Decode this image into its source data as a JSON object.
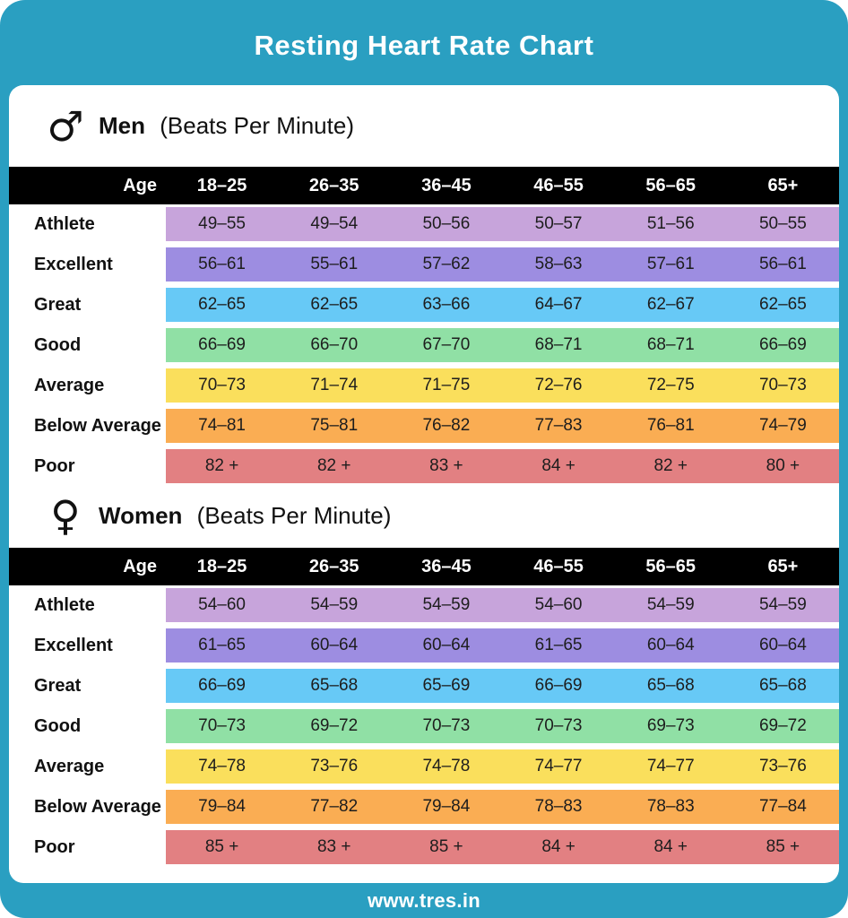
{
  "title": "Resting Heart Rate Chart",
  "footer": {
    "url": "www.tres.in"
  },
  "theme": {
    "teal": "#2A9FC1",
    "header_black": "#000000",
    "card_white": "#FFFFFF",
    "text_dark": "#111111"
  },
  "chart_data": [
    {
      "type": "table",
      "section": "Men",
      "subtitle": "(Beats Per Minute)",
      "icon": "male-icon",
      "icon_glyph": "♂",
      "columns": [
        "Age",
        "18–25",
        "26–35",
        "36–45",
        "46–55",
        "56–65",
        "65+"
      ],
      "rows": [
        {
          "label": "Athlete",
          "color": "#C7A4DB",
          "values": [
            "49–55",
            "49–54",
            "50–56",
            "50–57",
            "51–56",
            "50–55"
          ]
        },
        {
          "label": "Excellent",
          "color": "#9D8DE1",
          "values": [
            "56–61",
            "55–61",
            "57–62",
            "58–63",
            "57–61",
            "56–61"
          ]
        },
        {
          "label": "Great",
          "color": "#67C9F6",
          "values": [
            "62–65",
            "62–65",
            "63–66",
            "64–67",
            "62–67",
            "62–65"
          ]
        },
        {
          "label": "Good",
          "color": "#90E0A5",
          "values": [
            "66–69",
            "66–70",
            "67–70",
            "68–71",
            "68–71",
            "66–69"
          ]
        },
        {
          "label": "Average",
          "color": "#FADF5C",
          "values": [
            "70–73",
            "71–74",
            "71–75",
            "72–76",
            "72–75",
            "70–73"
          ]
        },
        {
          "label": "Below Average",
          "color": "#FAAD53",
          "values": [
            "74–81",
            "75–81",
            "76–82",
            "77–83",
            "76–81",
            "74–79"
          ]
        },
        {
          "label": "Poor",
          "color": "#E28082",
          "values": [
            "82 +",
            "82 +",
            "83 +",
            "84 +",
            "82 +",
            "80 +"
          ]
        }
      ]
    },
    {
      "type": "table",
      "section": "Women",
      "subtitle": "(Beats Per Minute)",
      "icon": "female-icon",
      "icon_glyph": "♀",
      "columns": [
        "Age",
        "18–25",
        "26–35",
        "36–45",
        "46–55",
        "56–65",
        "65+"
      ],
      "rows": [
        {
          "label": "Athlete",
          "color": "#C7A4DB",
          "values": [
            "54–60",
            "54–59",
            "54–59",
            "54–60",
            "54–59",
            "54–59"
          ]
        },
        {
          "label": "Excellent",
          "color": "#9D8DE1",
          "values": [
            "61–65",
            "60–64",
            "60–64",
            "61–65",
            "60–64",
            "60–64"
          ]
        },
        {
          "label": "Great",
          "color": "#67C9F6",
          "values": [
            "66–69",
            "65–68",
            "65–69",
            "66–69",
            "65–68",
            "65–68"
          ]
        },
        {
          "label": "Good",
          "color": "#90E0A5",
          "values": [
            "70–73",
            "69–72",
            "70–73",
            "70–73",
            "69–73",
            "69–72"
          ]
        },
        {
          "label": "Average",
          "color": "#FADF5C",
          "values": [
            "74–78",
            "73–76",
            "74–78",
            "74–77",
            "74–77",
            "73–76"
          ]
        },
        {
          "label": "Below Average",
          "color": "#FAAD53",
          "values": [
            "79–84",
            "77–82",
            "79–84",
            "78–83",
            "78–83",
            "77–84"
          ]
        },
        {
          "label": "Poor",
          "color": "#E28082",
          "values": [
            "85 +",
            "83 +",
            "85 +",
            "84 +",
            "84 +",
            "85 +"
          ]
        }
      ]
    }
  ]
}
